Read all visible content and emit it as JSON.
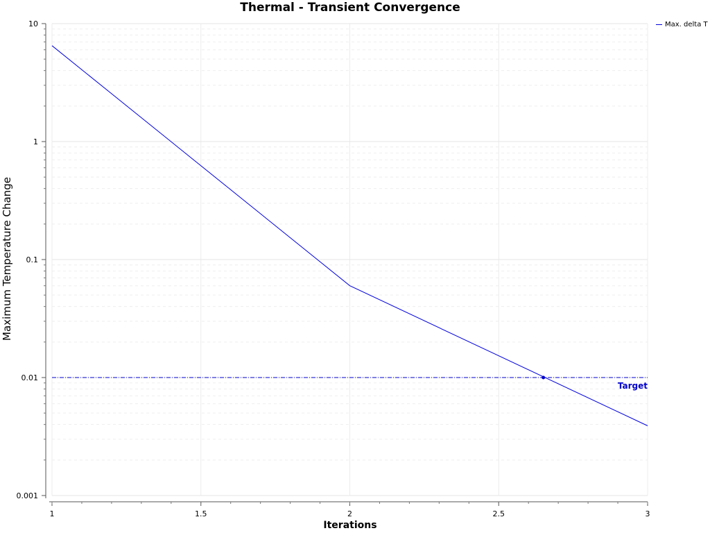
{
  "chart_data": {
    "type": "line",
    "title": "Thermal - Transient Convergence",
    "xlabel": "Iterations",
    "ylabel": "Maximum Temperature Change",
    "xlim": [
      1,
      3
    ],
    "ylim": [
      0.001,
      10
    ],
    "y_scale": "log",
    "x_ticks": [
      "1",
      "1.5",
      "2",
      "2.5",
      "3"
    ],
    "y_ticks": [
      "10",
      "1",
      "0.1",
      "0.01",
      "0.001"
    ],
    "grid": true,
    "legend": "top-right",
    "series": [
      {
        "name": "Max. delta T",
        "color": "#0000dd",
        "x": [
          1,
          2,
          3
        ],
        "y": [
          6.5,
          0.06,
          0.0039
        ]
      }
    ],
    "target": {
      "label": "Target",
      "value": 0.01,
      "crossing_x": 2.65,
      "color": "#0000cc"
    }
  }
}
